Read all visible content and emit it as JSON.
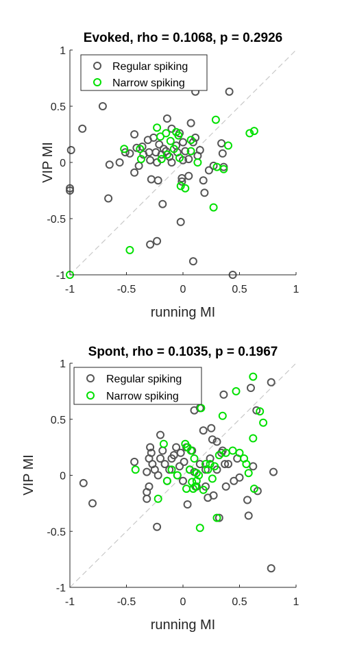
{
  "chart_data": [
    {
      "type": "scatter",
      "title": "Evoked, rho = 0.1068, p = 0.2926",
      "xlabel": "running MI",
      "ylabel": "VIP MI",
      "xlim": [
        -1,
        1
      ],
      "ylim": [
        -1,
        1
      ],
      "xticks": [
        "-1",
        "-0.5",
        "0",
        "0.5",
        "1"
      ],
      "yticks": [
        "1",
        "0.5",
        "0",
        "-0.5",
        "-1"
      ],
      "grid": false,
      "legend_position": "top-left",
      "diagonal": "y = x dashed reference line",
      "series": [
        {
          "name": "Regular spiking",
          "color": "#555555",
          "points": [
            [
              -0.99,
              0.11
            ],
            [
              -1.0,
              -0.23
            ],
            [
              -1.0,
              -0.25
            ],
            [
              -0.89,
              0.3
            ],
            [
              -0.71,
              0.5
            ],
            [
              -0.65,
              -0.02
            ],
            [
              -0.56,
              0.0
            ],
            [
              -0.66,
              -0.32
            ],
            [
              -0.51,
              0.09
            ],
            [
              -0.47,
              0.08
            ],
            [
              -0.43,
              0.25
            ],
            [
              -0.43,
              -0.09
            ],
            [
              -0.41,
              0.13
            ],
            [
              -0.39,
              -0.03
            ],
            [
              -0.36,
              0.14
            ],
            [
              -0.35,
              0.07
            ],
            [
              -0.31,
              0.2
            ],
            [
              -0.3,
              0.09
            ],
            [
              -0.29,
              0.02
            ],
            [
              -0.26,
              0.22
            ],
            [
              -0.24,
              0.09
            ],
            [
              -0.23,
              0.0
            ],
            [
              -0.21,
              0.16
            ],
            [
              -0.19,
              0.07
            ],
            [
              -0.17,
              0.12
            ],
            [
              -0.14,
              0.39
            ],
            [
              -0.15,
              0.1
            ],
            [
              -0.12,
              0.05
            ],
            [
              -0.1,
              0.3
            ],
            [
              -0.1,
              0.0
            ],
            [
              -0.06,
              0.15
            ],
            [
              -0.05,
              0.09
            ],
            [
              -0.03,
              0.26
            ],
            [
              0.0,
              0.18
            ],
            [
              0.02,
              0.1
            ],
            [
              0.05,
              0.03
            ],
            [
              0.07,
              0.35
            ],
            [
              0.09,
              0.18
            ],
            [
              0.11,
              0.22
            ],
            [
              0.13,
              0.06
            ],
            [
              0.15,
              0.11
            ],
            [
              0.11,
              0.63
            ],
            [
              -0.28,
              -0.15
            ],
            [
              -0.22,
              -0.16
            ],
            [
              -0.18,
              -0.37
            ],
            [
              -0.29,
              -0.73
            ],
            [
              -0.23,
              -0.7
            ],
            [
              -0.01,
              -0.14
            ],
            [
              -0.01,
              -0.17
            ],
            [
              -0.02,
              -0.53
            ],
            [
              0.09,
              -0.88
            ],
            [
              0.18,
              -0.16
            ],
            [
              0.19,
              -0.27
            ],
            [
              0.23,
              -0.07
            ],
            [
              0.27,
              -0.03
            ],
            [
              0.34,
              0.17
            ],
            [
              0.35,
              0.08
            ],
            [
              0.36,
              -0.04
            ],
            [
              0.41,
              0.63
            ],
            [
              0.44,
              -1.0
            ],
            [
              0.05,
              -0.12
            ],
            [
              0.0,
              0.02
            ]
          ]
        },
        {
          "name": "Narrow spiking",
          "color": "#00e000",
          "points": [
            [
              -0.52,
              0.12
            ],
            [
              -0.38,
              0.12
            ],
            [
              -0.37,
              0.03
            ],
            [
              -0.23,
              0.31
            ],
            [
              -0.2,
              0.23
            ],
            [
              -0.19,
              0.03
            ],
            [
              -0.15,
              0.26
            ],
            [
              -0.14,
              0.07
            ],
            [
              -0.11,
              0.19
            ],
            [
              -0.08,
              0.12
            ],
            [
              -0.06,
              0.27
            ],
            [
              -0.04,
              0.24
            ],
            [
              -0.03,
              0.04
            ],
            [
              -0.02,
              -0.21
            ],
            [
              0.02,
              -0.23
            ],
            [
              0.07,
              0.2
            ],
            [
              0.13,
              0.0
            ],
            [
              0.29,
              0.38
            ],
            [
              0.3,
              -0.04
            ],
            [
              0.36,
              -0.06
            ],
            [
              0.4,
              0.15
            ],
            [
              0.59,
              0.26
            ],
            [
              0.63,
              0.28
            ],
            [
              0.27,
              -0.4
            ],
            [
              -0.47,
              -0.78
            ],
            [
              -1.0,
              -1.0
            ],
            [
              0.07,
              0.1
            ]
          ]
        }
      ]
    },
    {
      "type": "scatter",
      "title": "Spont, rho = 0.1035, p = 0.1967",
      "xlabel": "running MI",
      "ylabel": "VIP MI",
      "xlim": [
        -1,
        1
      ],
      "ylim": [
        -1,
        1
      ],
      "xticks": [
        "-1",
        "-0.5",
        "0",
        "0.5",
        "1"
      ],
      "yticks": [
        "1",
        "0.5",
        "0",
        "-0.5",
        "-1"
      ],
      "grid": false,
      "legend_position": "top-left",
      "diagonal": "y = x dashed reference line",
      "series": [
        {
          "name": "Regular spiking",
          "color": "#555555",
          "points": [
            [
              -0.88,
              -0.07
            ],
            [
              -0.8,
              -0.25
            ],
            [
              -0.43,
              0.12
            ],
            [
              -0.32,
              0.03
            ],
            [
              -0.32,
              -0.15
            ],
            [
              -0.32,
              -0.21
            ],
            [
              -0.3,
              -0.1
            ],
            [
              -0.3,
              0.15
            ],
            [
              -0.29,
              0.25
            ],
            [
              -0.28,
              0.2
            ],
            [
              -0.27,
              0.1
            ],
            [
              -0.25,
              0.05
            ],
            [
              -0.22,
              0.0
            ],
            [
              -0.2,
              0.15
            ],
            [
              -0.2,
              0.36
            ],
            [
              -0.18,
              0.22
            ],
            [
              -0.16,
              0.1
            ],
            [
              -0.14,
              -0.05
            ],
            [
              -0.12,
              0.05
            ],
            [
              -0.1,
              0.15
            ],
            [
              -0.08,
              0.18
            ],
            [
              -0.06,
              0.25
            ],
            [
              -0.05,
              0.0
            ],
            [
              -0.03,
              0.08
            ],
            [
              -0.02,
              0.2
            ],
            [
              0.0,
              -0.05
            ],
            [
              0.01,
              0.12
            ],
            [
              0.03,
              0.25
            ],
            [
              0.04,
              -0.26
            ],
            [
              0.06,
              0.05
            ],
            [
              0.08,
              0.22
            ],
            [
              0.1,
              0.03
            ],
            [
              0.1,
              0.58
            ],
            [
              0.12,
              -0.1
            ],
            [
              0.15,
              0.6
            ],
            [
              0.15,
              0.1
            ],
            [
              0.18,
              0.4
            ],
            [
              0.2,
              0.05
            ],
            [
              0.22,
              -0.2
            ],
            [
              0.24,
              0.15
            ],
            [
              0.25,
              0.42
            ],
            [
              0.26,
              0.32
            ],
            [
              0.27,
              -0.18
            ],
            [
              0.3,
              0.3
            ],
            [
              0.3,
              0.05
            ],
            [
              0.32,
              -0.38
            ],
            [
              0.34,
              0.2
            ],
            [
              0.35,
              0.22
            ],
            [
              0.37,
              0.1
            ],
            [
              0.38,
              -0.1
            ],
            [
              0.36,
              0.72
            ],
            [
              0.4,
              0.1
            ],
            [
              0.45,
              -0.05
            ],
            [
              0.48,
              0.15
            ],
            [
              0.5,
              -0.02
            ],
            [
              0.57,
              -0.22
            ],
            [
              0.58,
              -0.36
            ],
            [
              0.6,
              0.78
            ],
            [
              0.62,
              0.08
            ],
            [
              0.65,
              0.58
            ],
            [
              0.66,
              -0.14
            ],
            [
              0.78,
              0.83
            ],
            [
              0.8,
              0.03
            ],
            [
              0.78,
              -0.83
            ],
            [
              -0.23,
              -0.46
            ],
            [
              0.2,
              -0.1
            ]
          ]
        },
        {
          "name": "Narrow spiking",
          "color": "#00e000",
          "points": [
            [
              -0.42,
              0.05
            ],
            [
              -0.22,
              -0.21
            ],
            [
              -0.17,
              0.28
            ],
            [
              -0.14,
              -0.05
            ],
            [
              -0.1,
              0.05
            ],
            [
              -0.05,
              0.0
            ],
            [
              0.02,
              0.28
            ],
            [
              0.04,
              0.25
            ],
            [
              0.06,
              0.05
            ],
            [
              0.07,
              0.22
            ],
            [
              0.08,
              -0.06
            ],
            [
              0.09,
              -0.12
            ],
            [
              0.1,
              0.15
            ],
            [
              0.11,
              -0.1
            ],
            [
              0.12,
              -0.05
            ],
            [
              0.14,
              0.0
            ],
            [
              0.15,
              -0.47
            ],
            [
              0.16,
              0.6
            ],
            [
              0.18,
              -0.13
            ],
            [
              0.2,
              0.1
            ],
            [
              0.22,
              0.05
            ],
            [
              0.24,
              0.1
            ],
            [
              0.26,
              -0.03
            ],
            [
              0.28,
              0.08
            ],
            [
              0.3,
              -0.38
            ],
            [
              0.32,
              0.18
            ],
            [
              0.35,
              0.53
            ],
            [
              0.38,
              0.2
            ],
            [
              0.44,
              0.22
            ],
            [
              0.47,
              0.75
            ],
            [
              0.5,
              0.2
            ],
            [
              0.54,
              0.15
            ],
            [
              0.56,
              0.1
            ],
            [
              0.58,
              0.02
            ],
            [
              0.62,
              0.33
            ],
            [
              0.62,
              0.88
            ],
            [
              0.63,
              -0.12
            ],
            [
              0.68,
              0.57
            ],
            [
              0.71,
              0.47
            ],
            [
              0.03,
              -0.12
            ],
            [
              0.12,
              0.02
            ]
          ]
        }
      ]
    }
  ]
}
